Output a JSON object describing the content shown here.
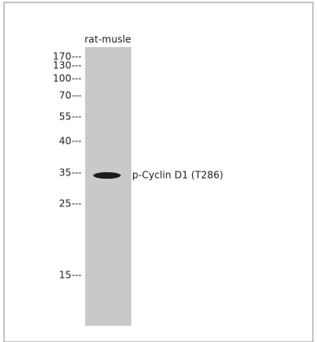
{
  "lane": {
    "label": "rat-musle"
  },
  "markers": [
    "170",
    "130",
    "100",
    "70",
    "55",
    "40",
    "35",
    "25",
    "15"
  ],
  "band": {
    "label": "p-Cyclin D1 (T286)"
  }
}
